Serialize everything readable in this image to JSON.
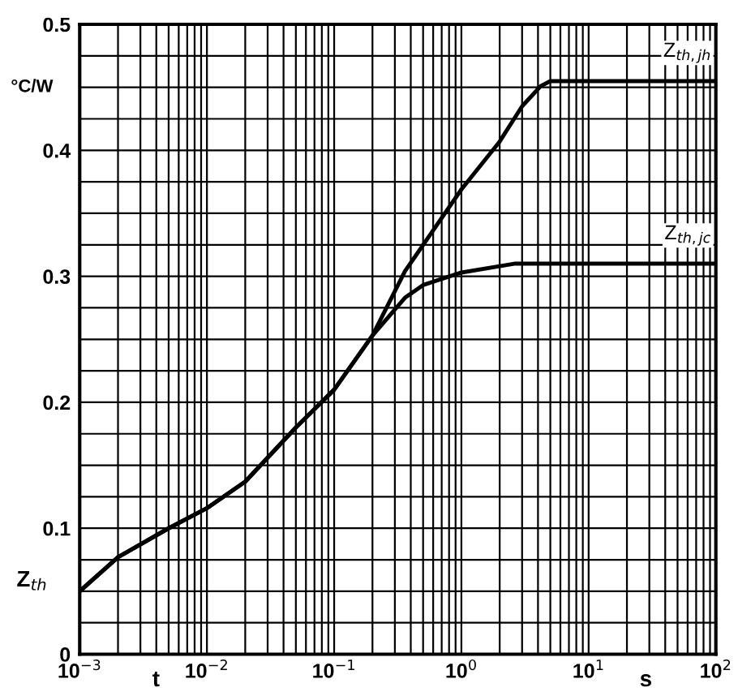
{
  "chart_data": {
    "type": "line",
    "ylabel": "Z$_{th}$",
    "xlabel": "t",
    "annotations": [
      "°C/W",
      "s"
    ],
    "log": "x",
    "grid": true,
    "legend": false,
    "marker": "none",
    "line_style": "solid",
    "xlim": [
      0.001,
      100
    ],
    "ylim": [
      0,
      0.5
    ],
    "xticks": [
      {
        "value": 0.001,
        "label": "10$^{−3}$"
      },
      {
        "value": 0.002,
        "label": null
      },
      {
        "value": 0.003,
        "label": null
      },
      {
        "value": 0.004,
        "label": null
      },
      {
        "value": 0.005,
        "label": null
      },
      {
        "value": 0.006,
        "label": null
      },
      {
        "value": 0.007,
        "label": null
      },
      {
        "value": 0.008,
        "label": null
      },
      {
        "value": 0.009,
        "label": null
      },
      {
        "value": 0.01,
        "label": "10$^{−2}$"
      },
      {
        "value": 0.02,
        "label": null
      },
      {
        "value": 0.03,
        "label": null
      },
      {
        "value": 0.04,
        "label": null
      },
      {
        "value": 0.05,
        "label": null
      },
      {
        "value": 0.06,
        "label": null
      },
      {
        "value": 0.07,
        "label": null
      },
      {
        "value": 0.08,
        "label": null
      },
      {
        "value": 0.09,
        "label": null
      },
      {
        "value": 0.1,
        "label": "10$^{−1}$"
      },
      {
        "value": 0.2,
        "label": null
      },
      {
        "value": 0.3,
        "label": null
      },
      {
        "value": 0.4,
        "label": null
      },
      {
        "value": 0.5,
        "label": null
      },
      {
        "value": 0.6,
        "label": null
      },
      {
        "value": 0.7,
        "label": null
      },
      {
        "value": 0.8,
        "label": null
      },
      {
        "value": 0.9,
        "label": null
      },
      {
        "value": 1,
        "label": "10$^{0}$"
      },
      {
        "value": 2,
        "label": null
      },
      {
        "value": 3,
        "label": null
      },
      {
        "value": 4,
        "label": null
      },
      {
        "value": 5,
        "label": null
      },
      {
        "value": 6,
        "label": null
      },
      {
        "value": 7,
        "label": null
      },
      {
        "value": 8,
        "label": null
      },
      {
        "value": 9,
        "label": null
      },
      {
        "value": 10,
        "label": "10$^{1}$"
      },
      {
        "value": 20,
        "label": null
      },
      {
        "value": 30,
        "label": null
      },
      {
        "value": 40,
        "label": null
      },
      {
        "value": 50,
        "label": null
      },
      {
        "value": 60,
        "label": null
      },
      {
        "value": 70,
        "label": null
      },
      {
        "value": 80,
        "label": null
      },
      {
        "value": 90,
        "label": null
      },
      {
        "value": 100,
        "label": "10$^{2}$"
      }
    ],
    "yticks": [
      0,
      {
        "value": 0.025,
        "label": null
      },
      0.1,
      {
        "value": 0.075,
        "label": null
      },
      {
        "value": 0.125,
        "label": null
      },
      0.2,
      {
        "value": 0.175,
        "label": null
      },
      {
        "value": 0.225,
        "label": null
      },
      0.3,
      {
        "value": 0.275,
        "label": null
      },
      {
        "value": 0.325,
        "label": null
      },
      0.4,
      {
        "value": 0.375,
        "label": null
      },
      {
        "value": 0.425,
        "label": null
      },
      0.5,
      {
        "value": 0.475,
        "label": null
      },
      {
        "value": 0.05,
        "label": null
      },
      {
        "value": 0.15,
        "label": null
      },
      {
        "value": 0.25,
        "label": null
      },
      {
        "value": 0.35,
        "label": null
      },
      {
        "value": 0.45,
        "label": null
      }
    ],
    "series": [
      {
        "name": "Z$_{th,jh}$",
        "color": "#000000",
        "x": [
          0.001,
          0.002,
          0.005,
          0.01,
          0.02,
          0.05,
          0.1,
          0.2,
          0.36,
          1,
          2,
          3,
          4.2,
          5,
          100
        ],
        "values": [
          0.05,
          0.077,
          0.1,
          0.116,
          0.137,
          0.18,
          0.21,
          0.253,
          0.304,
          0.369,
          0.407,
          0.435,
          0.451,
          0.455,
          0.455
        ]
      },
      {
        "name": "Z$_{th,jc}$",
        "color": "#000000",
        "x": [
          0.001,
          0.002,
          0.005,
          0.01,
          0.02,
          0.05,
          0.1,
          0.2,
          0.36,
          0.5,
          1,
          2.6,
          100
        ],
        "values": [
          0.05,
          0.077,
          0.1,
          0.116,
          0.137,
          0.18,
          0.21,
          0.253,
          0.283,
          0.293,
          0.303,
          0.31,
          0.31
        ]
      }
    ]
  }
}
